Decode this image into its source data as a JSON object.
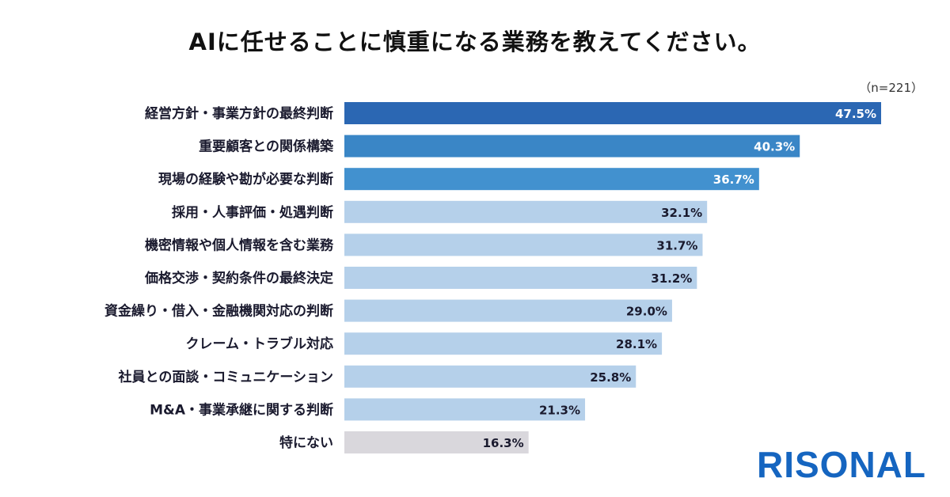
{
  "chart_data": {
    "type": "bar",
    "orientation": "horizontal",
    "title": "AIに任せることに慎重になる業務を教えてください。",
    "sample_size": "（n=221）",
    "categories": [
      "経営方針・事業方針の最終判断",
      "重要顧客との関係構築",
      "現場の経験や勘が必要な判断",
      "採用・人事評価・処遇判断",
      "機密情報や個人情報を含む業務",
      "価格交渉・契約条件の最終決定",
      "資金繰り・借入・金融機関対応の判断",
      "クレーム・トラブル対応",
      "社員との面談・コミュニケーション",
      "M&A・事業承継に関する判断",
      "特にない"
    ],
    "values": [
      47.5,
      40.3,
      36.7,
      32.1,
      31.7,
      31.2,
      29.0,
      28.1,
      25.8,
      21.3,
      16.3
    ],
    "value_labels": [
      "47.5%",
      "40.3%",
      "36.7%",
      "32.1%",
      "31.7%",
      "31.2%",
      "29.0%",
      "28.1%",
      "25.8%",
      "21.3%",
      "16.3%"
    ],
    "bar_colors": [
      "#2b67b3",
      "#3a86c6",
      "#4291cf",
      "#b5d0ea",
      "#b5d0ea",
      "#b5d0ea",
      "#b5d0ea",
      "#b5d0ea",
      "#b5d0ea",
      "#b5d0ea",
      "#d9d7dc"
    ],
    "label_colors": [
      "#ffffff",
      "#ffffff",
      "#ffffff",
      "#1a1a2e",
      "#1a1a2e",
      "#1a1a2e",
      "#1a1a2e",
      "#1a1a2e",
      "#1a1a2e",
      "#1a1a2e",
      "#1a1a2e"
    ],
    "xlim": [
      0,
      47.5
    ],
    "grid": false,
    "legend": "none"
  },
  "brand": {
    "logo_text": "RISONAL",
    "color": "#1565c0"
  }
}
